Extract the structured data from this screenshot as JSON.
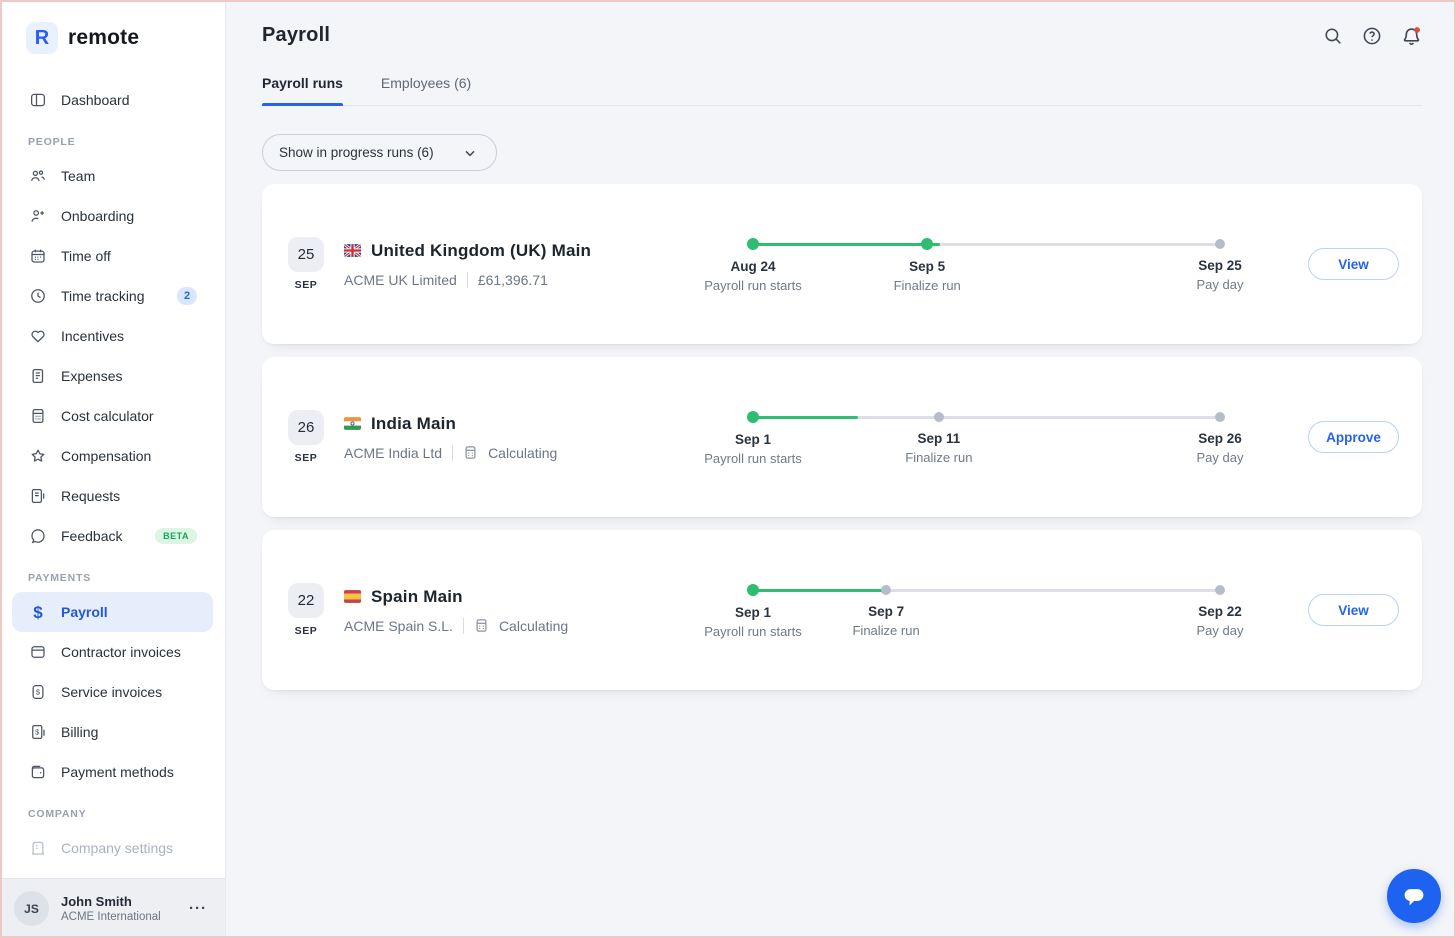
{
  "brand": {
    "name": "remote",
    "logo_letter": "R"
  },
  "topbar": {
    "title": "Payroll",
    "icons": [
      {
        "name": "search-icon"
      },
      {
        "name": "help-icon"
      },
      {
        "name": "notifications-bell-icon",
        "has_unread_dot": true,
        "dot_color": "#e8473f"
      }
    ]
  },
  "tabs": [
    {
      "label": "Payroll runs",
      "active": true
    },
    {
      "label": "Employees (6)",
      "active": false
    }
  ],
  "filter": {
    "label": "Show in progress runs (6)"
  },
  "sidebar": {
    "sections": [
      {
        "heading": "",
        "items": [
          {
            "label": "Dashboard",
            "icon": "dashboard-icon"
          }
        ]
      },
      {
        "heading": "PEOPLE",
        "items": [
          {
            "label": "Team",
            "icon": "team-icon"
          },
          {
            "label": "Onboarding",
            "icon": "person-plus-icon"
          },
          {
            "label": "Time off",
            "icon": "calendar-icon"
          },
          {
            "label": "Time tracking",
            "icon": "clock-icon",
            "badge": "2"
          },
          {
            "label": "Incentives",
            "icon": "heart-icon"
          },
          {
            "label": "Expenses",
            "icon": "receipt-icon"
          },
          {
            "label": "Cost calculator",
            "icon": "calculator-icon"
          },
          {
            "label": "Compensation",
            "icon": "star-icon"
          },
          {
            "label": "Requests",
            "icon": "document-icon"
          },
          {
            "label": "Feedback",
            "icon": "speech-bubble-icon",
            "badge": "BETA"
          }
        ]
      },
      {
        "heading": "PAYMENTS",
        "items": [
          {
            "label": "Payroll",
            "icon": "dollar-icon",
            "active": true
          },
          {
            "label": "Contractor invoices",
            "icon": "card-icon"
          },
          {
            "label": "Service invoices",
            "icon": "invoice-dollar-icon"
          },
          {
            "label": "Billing",
            "icon": "billing-receipt-icon"
          },
          {
            "label": "Payment methods",
            "icon": "wallet-icon"
          }
        ]
      },
      {
        "heading": "COMPANY",
        "items": [
          {
            "label": "Company settings",
            "icon": "building-icon",
            "disabled": true
          }
        ]
      }
    ],
    "user": {
      "initials": "JS",
      "name": "John Smith",
      "org": "ACME International",
      "menu": "···"
    }
  },
  "cards": [
    {
      "day": "25",
      "month": "SEP",
      "flag": "uk",
      "title": "United Kingdom (UK) Main",
      "company": "ACME UK Limited",
      "status": "£61,396.71",
      "has_status_icon": false,
      "action": "View",
      "timeline": {
        "progress_pct": 40,
        "milestones": [
          {
            "date": "Aug 24",
            "label": "Payroll run starts",
            "pos_pct": 0,
            "state": "done"
          },
          {
            "date": "Sep 5",
            "label": "Finalize run",
            "pos_pct": 37.3,
            "state": "done"
          },
          {
            "date": "Sep 25",
            "label": "Pay day",
            "pos_pct": 100,
            "state": "pending"
          }
        ]
      }
    },
    {
      "day": "26",
      "month": "SEP",
      "flag": "india",
      "title": "India Main",
      "company": "ACME India Ltd",
      "status": "Calculating",
      "has_status_icon": true,
      "action": "Approve",
      "timeline": {
        "progress_pct": 22.5,
        "milestones": [
          {
            "date": "Sep 1",
            "label": "Payroll run starts",
            "pos_pct": 0,
            "state": "done"
          },
          {
            "date": "Sep 11",
            "label": "Finalize run",
            "pos_pct": 39.8,
            "state": "pending"
          },
          {
            "date": "Sep 26",
            "label": "Pay day",
            "pos_pct": 100,
            "state": "pending"
          }
        ]
      }
    },
    {
      "day": "22",
      "month": "SEP",
      "flag": "spain",
      "title": "Spain Main",
      "company": "ACME Spain S.L.",
      "status": "Calculating",
      "has_status_icon": true,
      "action": "View",
      "timeline": {
        "progress_pct": 28.5,
        "milestones": [
          {
            "date": "Sep 1",
            "label": "Payroll run starts",
            "pos_pct": 0,
            "state": "done"
          },
          {
            "date": "Sep 7",
            "label": "Finalize run",
            "pos_pct": 28.5,
            "state": "pending"
          },
          {
            "date": "Sep 22",
            "label": "Pay day",
            "pos_pct": 100,
            "state": "pending"
          }
        ]
      }
    }
  ],
  "colors": {
    "accent_blue": "#2563eb",
    "brand_blue": "#2b5cf5",
    "progress_green": "#2fbe71",
    "pending_gray": "#b6bdc9",
    "main_bg": "#f4f5f8",
    "notification_red": "#e8473f"
  },
  "chat": {
    "name": "chat-launcher"
  }
}
